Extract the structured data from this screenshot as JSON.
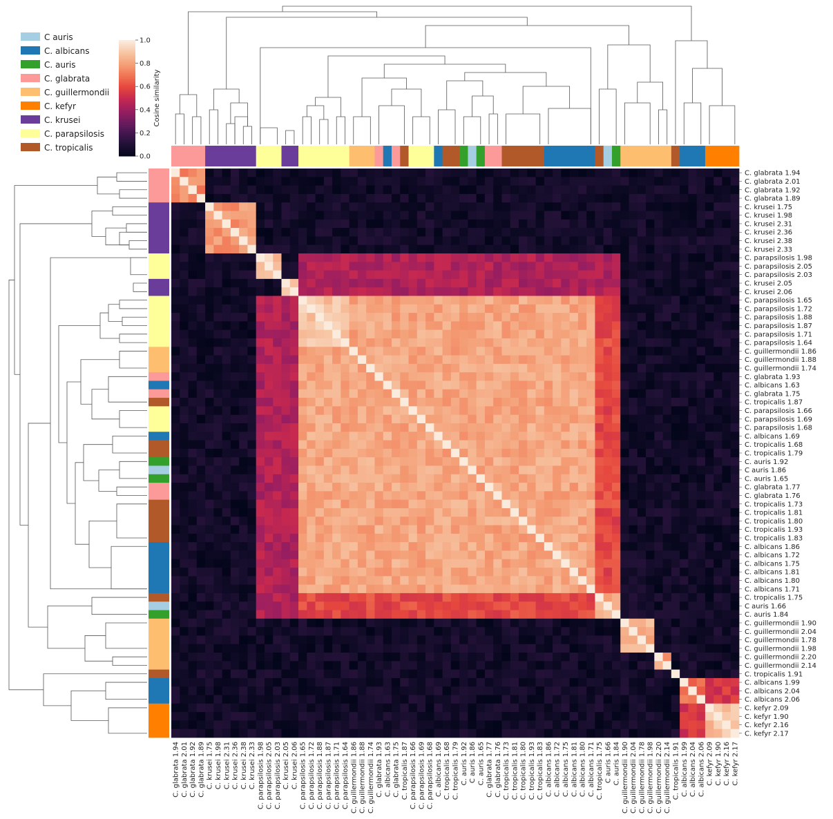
{
  "chart_data": {
    "type": "heatmap",
    "title": "",
    "colorbar": {
      "label": "Cosine similarity",
      "ticks": [
        "0.0",
        "0.2",
        "0.4",
        "0.6",
        "0.8",
        "1.0"
      ],
      "range": [
        0,
        1
      ],
      "colormap": "rocket"
    },
    "legend": {
      "placement": "top-left",
      "entries": [
        {
          "name": "C auris",
          "color": "#a6cee3"
        },
        {
          "name": "C. albicans",
          "color": "#1f78b4"
        },
        {
          "name": "C. auris",
          "color": "#33a02c"
        },
        {
          "name": "C. glabrata",
          "color": "#fb9a99"
        },
        {
          "name": "C. guillermondii",
          "color": "#fdbf6f"
        },
        {
          "name": "C. kefyr",
          "color": "#ff7f00"
        },
        {
          "name": "C. krusei",
          "color": "#6a3d9a"
        },
        {
          "name": "C. parapsilosis",
          "color": "#ffff99"
        },
        {
          "name": "C. tropicalis",
          "color": "#b15928"
        }
      ]
    },
    "samples": [
      {
        "label": "C. glabrata 1.94",
        "group": 3
      },
      {
        "label": "C. glabrata 2.01",
        "group": 3
      },
      {
        "label": "C. glabrata 1.92",
        "group": 3
      },
      {
        "label": "C. glabrata 1.89",
        "group": 3
      },
      {
        "label": "C. krusei 1.75",
        "group": 6
      },
      {
        "label": "C. krusei 1.98",
        "group": 6
      },
      {
        "label": "C. krusei 2.31",
        "group": 6
      },
      {
        "label": "C. krusei 2.36",
        "group": 6
      },
      {
        "label": "C. krusei 2.38",
        "group": 6
      },
      {
        "label": "C. krusei 2.33",
        "group": 6
      },
      {
        "label": "C. parapsilosis 1.98",
        "group": 7
      },
      {
        "label": "C. parapsilosis 2.05",
        "group": 7
      },
      {
        "label": "C. parapsilosis 2.03",
        "group": 7
      },
      {
        "label": "C. krusei 2.05",
        "group": 6
      },
      {
        "label": "C. krusei 2.06",
        "group": 6
      },
      {
        "label": "C. parapsilosis 1.65",
        "group": 7
      },
      {
        "label": "C. parapsilosis 1.72",
        "group": 7
      },
      {
        "label": "C. parapsilosis 1.88",
        "group": 7
      },
      {
        "label": "C. parapsilosis 1.87",
        "group": 7
      },
      {
        "label": "C. parapsilosis 1.71",
        "group": 7
      },
      {
        "label": "C. parapsilosis 1.64",
        "group": 7
      },
      {
        "label": "C. guillermondii 1.86",
        "group": 4
      },
      {
        "label": "C. guillermondii 1.88",
        "group": 4
      },
      {
        "label": "C. guillermondii 1.74",
        "group": 4
      },
      {
        "label": "C. glabrata 1.93",
        "group": 3
      },
      {
        "label": "C. albicans 1.63",
        "group": 1
      },
      {
        "label": "C. glabrata 1.75",
        "group": 3
      },
      {
        "label": "C. tropicalis 1.87",
        "group": 8
      },
      {
        "label": "C. parapsilosis 1.66",
        "group": 7
      },
      {
        "label": "C. parapsilosis 1.69",
        "group": 7
      },
      {
        "label": "C. parapsilosis 1.68",
        "group": 7
      },
      {
        "label": "C. albicans 1.69",
        "group": 1
      },
      {
        "label": "C. tropicalis 1.68",
        "group": 8
      },
      {
        "label": "C. tropicalis 1.79",
        "group": 8
      },
      {
        "label": "C. auris 1.92",
        "group": 2
      },
      {
        "label": "C auris 1.86",
        "group": 0
      },
      {
        "label": "C. auris 1.65",
        "group": 2
      },
      {
        "label": "C. glabrata 1.77",
        "group": 3
      },
      {
        "label": "C. glabrata 1.76",
        "group": 3
      },
      {
        "label": "C. tropicalis 1.73",
        "group": 8
      },
      {
        "label": "C. tropicalis 1.81",
        "group": 8
      },
      {
        "label": "C. tropicalis 1.80",
        "group": 8
      },
      {
        "label": "C. tropicalis 1.93",
        "group": 8
      },
      {
        "label": "C. tropicalis 1.83",
        "group": 8
      },
      {
        "label": "C. albicans 1.86",
        "group": 1
      },
      {
        "label": "C. albicans 1.72",
        "group": 1
      },
      {
        "label": "C. albicans 1.75",
        "group": 1
      },
      {
        "label": "C. albicans 1.81",
        "group": 1
      },
      {
        "label": "C. albicans 1.80",
        "group": 1
      },
      {
        "label": "C. albicans 1.71",
        "group": 1
      },
      {
        "label": "C. tropicalis 1.75",
        "group": 8
      },
      {
        "label": "C auris 1.66",
        "group": 0
      },
      {
        "label": "C. auris 1.84",
        "group": 2
      },
      {
        "label": "C. guillermondii 1.90",
        "group": 4
      },
      {
        "label": "C. guillermondii 2.04",
        "group": 4
      },
      {
        "label": "C. guillermondii 1.78",
        "group": 4
      },
      {
        "label": "C. guillermondii 1.98",
        "group": 4
      },
      {
        "label": "C. guillermondii 2.20",
        "group": 4
      },
      {
        "label": "C. guillermondii 2.14",
        "group": 4
      },
      {
        "label": "C. tropicalis 1.91",
        "group": 8
      },
      {
        "label": "C. albicans 1.99",
        "group": 1
      },
      {
        "label": "C. albicans 2.04",
        "group": 1
      },
      {
        "label": "C. albicans 2.06",
        "group": 1
      },
      {
        "label": "C. kefyr 2.09",
        "group": 5
      },
      {
        "label": "C. kefyr 1.90",
        "group": 5
      },
      {
        "label": "C. kefyr 2.16",
        "group": 5
      },
      {
        "label": "C. kefyr 2.17",
        "group": 5
      }
    ],
    "similarity_blocks": [
      {
        "rows": [
          0,
          3
        ],
        "cols": [
          0,
          3
        ],
        "value": 0.75
      },
      {
        "rows": [
          4,
          9
        ],
        "cols": [
          4,
          9
        ],
        "value": 0.78
      },
      {
        "rows": [
          10,
          12
        ],
        "cols": [
          10,
          12
        ],
        "value": 0.9
      },
      {
        "rows": [
          13,
          14
        ],
        "cols": [
          13,
          14
        ],
        "value": 0.88
      },
      {
        "rows": [
          15,
          49
        ],
        "cols": [
          15,
          49
        ],
        "value": 0.82
      },
      {
        "rows": [
          15,
          20
        ],
        "cols": [
          15,
          20
        ],
        "value": 0.9
      },
      {
        "rows": [
          10,
          14
        ],
        "cols": [
          15,
          52
        ],
        "value": 0.45
      },
      {
        "rows": [
          50,
          52
        ],
        "cols": [
          15,
          49
        ],
        "value": 0.6
      },
      {
        "rows": [
          50,
          52
        ],
        "cols": [
          50,
          52
        ],
        "value": 0.85
      },
      {
        "rows": [
          53,
          56
        ],
        "cols": [
          53,
          56
        ],
        "value": 0.85
      },
      {
        "rows": [
          57,
          58
        ],
        "cols": [
          57,
          58
        ],
        "value": 0.8
      },
      {
        "rows": [
          60,
          62
        ],
        "cols": [
          60,
          62
        ],
        "value": 0.7
      },
      {
        "rows": [
          63,
          66
        ],
        "cols": [
          63,
          66
        ],
        "value": 0.88
      },
      {
        "rows": [
          60,
          62
        ],
        "cols": [
          63,
          66
        ],
        "value": 0.55
      }
    ],
    "off_block_value": 0.06,
    "diagonal_value": 1.0
  }
}
